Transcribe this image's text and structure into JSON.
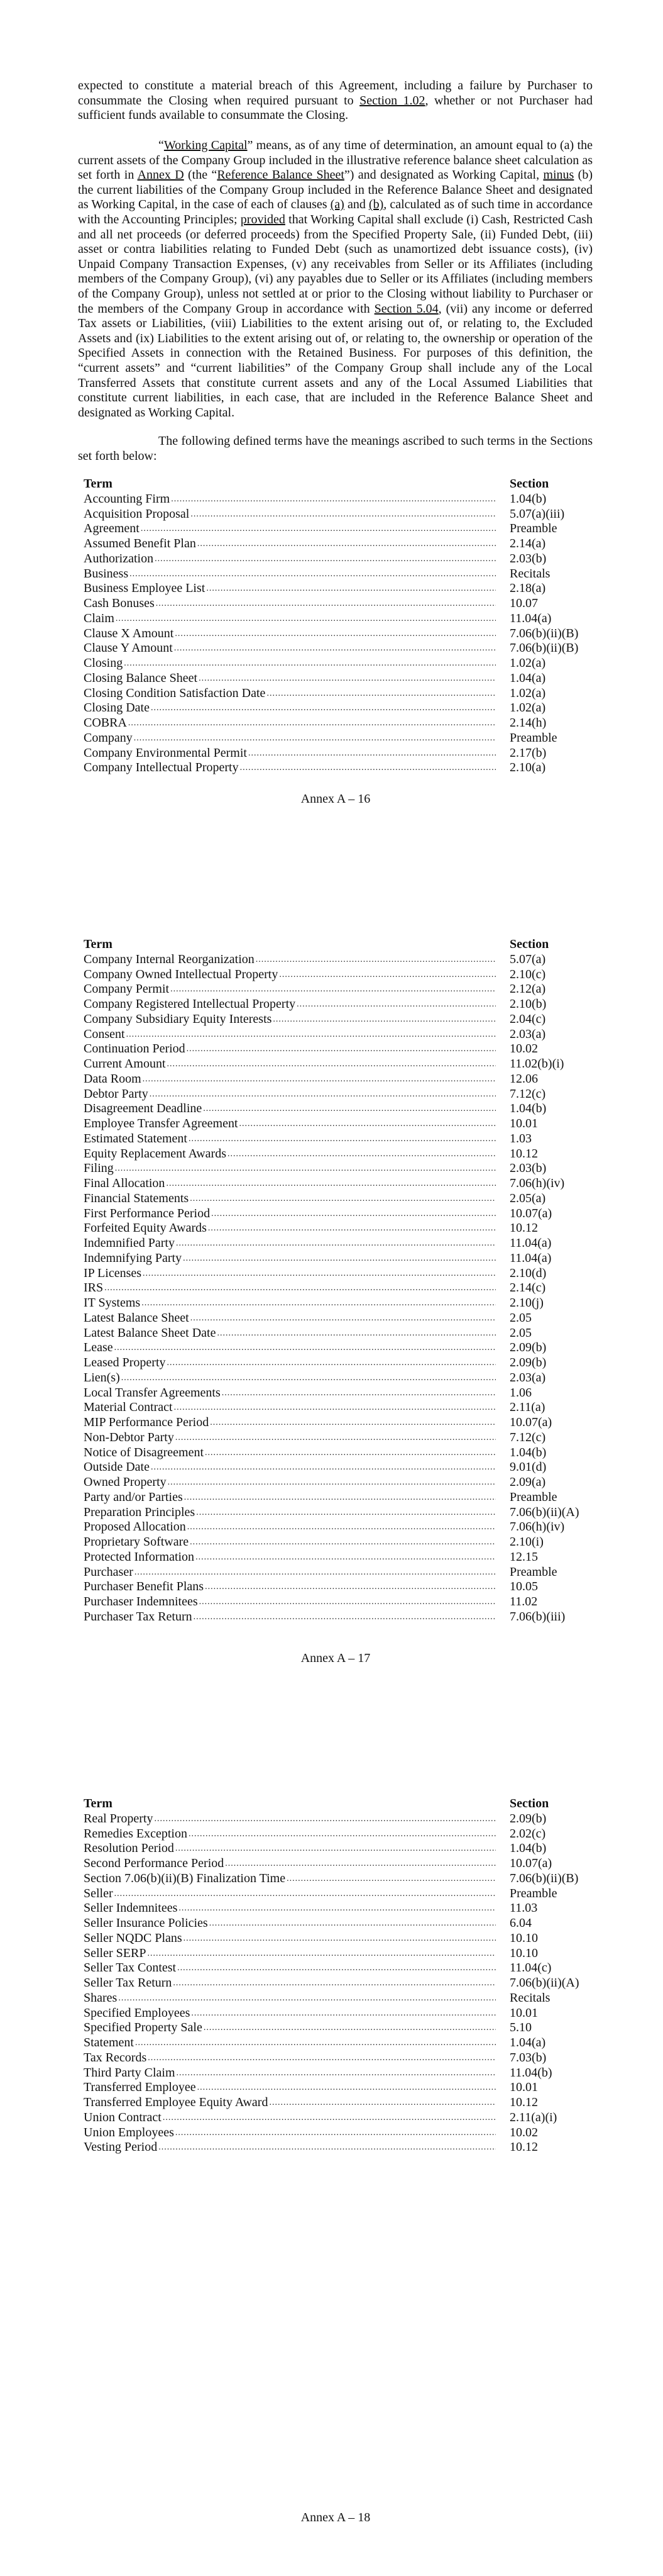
{
  "pages": [
    {
      "paragraphs": [
        {
          "indent": false,
          "segments": [
            {
              "t": "expected to constitute a material breach of this Agreement, including a failure by Purchaser to consummate the Closing when required pursuant to "
            },
            {
              "t": "Section 1.02",
              "u": true
            },
            {
              "t": ", whether or not Purchaser had sufficient funds available to consummate the Closing."
            }
          ]
        },
        {
          "indent": true,
          "segments": [
            {
              "t": "“"
            },
            {
              "t": "Working Capital",
              "u": true
            },
            {
              "t": "” means, as of any time of determination, an amount equal to (a) the current assets of the Company Group included in the illustrative reference balance sheet calculation as set forth in "
            },
            {
              "t": "Annex D",
              "u": true
            },
            {
              "t": " (the “"
            },
            {
              "t": "Reference Balance Sheet",
              "u": true
            },
            {
              "t": "”) and designated as Working Capital, "
            },
            {
              "t": "minus",
              "u": true
            },
            {
              "t": " (b) the current liabilities of the Company Group included in the Reference Balance Sheet and designated as Working Capital, in the case of each of clauses "
            },
            {
              "t": "(a)",
              "u": true
            },
            {
              "t": " and "
            },
            {
              "t": "(b)",
              "u": true
            },
            {
              "t": ", calculated as of such time in accordance with the Accounting Principles; "
            },
            {
              "t": "provided",
              "u": true
            },
            {
              "t": " that Working Capital shall exclude (i) Cash, Restricted Cash and all net proceeds (or deferred proceeds) from the Specified Property Sale, (ii) Funded Debt, (iii) asset or contra liabilities relating to Funded Debt (such as unamortized debt issuance costs), (iv) Unpaid Company Transaction Expenses, (v) any receivables from Seller or its Affiliates (including members of the Company Group), (vi) any payables due to Seller or its Affiliates (including members of the Company Group), unless not settled at or prior to the Closing without liability to Purchaser or the members of the Company Group in accordance with "
            },
            {
              "t": "Section 5.04",
              "u": true
            },
            {
              "t": ", (vii) any income or deferred Tax assets or Liabilities, (viii) Liabilities to the extent arising out of, or relating to, the Excluded Assets and (ix) Liabilities to the extent arising out of, or relating to, the ownership or operation of the Specified Assets in connection with the Retained Business.  For purposes of this definition, the “current assets” and “current liabilities” of the Company Group shall include any of the Local Transferred Assets that constitute current assets and any of the Local Assumed Liabilities that constitute current liabilities, in each case, that are included in the Reference Balance Sheet and designated as Working Capital."
            }
          ]
        },
        {
          "indent": true,
          "segments": [
            {
              "t": "The following defined terms have the meanings ascribed to such terms in the Sections set forth below:"
            }
          ]
        }
      ],
      "header": {
        "term": "Term",
        "section": "Section"
      },
      "rows": [
        [
          "Accounting Firm",
          "1.04(b)"
        ],
        [
          "Acquisition Proposal",
          "5.07(a)(iii)"
        ],
        [
          "Agreement",
          "Preamble"
        ],
        [
          "Assumed Benefit Plan",
          "2.14(a)"
        ],
        [
          "Authorization",
          "2.03(b)"
        ],
        [
          "Business",
          "Recitals"
        ],
        [
          "Business Employee List",
          "2.18(a)"
        ],
        [
          "Cash Bonuses",
          "10.07"
        ],
        [
          "Claim",
          "11.04(a)"
        ],
        [
          "Clause X Amount",
          "7.06(b)(ii)(B)"
        ],
        [
          "Clause Y Amount",
          "7.06(b)(ii)(B)"
        ],
        [
          "Closing",
          "1.02(a)"
        ],
        [
          "Closing Balance Sheet",
          "1.04(a)"
        ],
        [
          "Closing Condition Satisfaction Date",
          "1.02(a)"
        ],
        [
          "Closing Date",
          "1.02(a)"
        ],
        [
          "COBRA",
          "2.14(h)"
        ],
        [
          "Company",
          "Preamble"
        ],
        [
          "Company Environmental Permit",
          "2.17(b)"
        ],
        [
          "Company Intellectual Property",
          "2.10(a)"
        ]
      ],
      "footer": "Annex A – 16"
    },
    {
      "paragraphs": [],
      "header": {
        "term": "Term",
        "section": "Section"
      },
      "rows": [
        [
          "Company Internal Reorganization",
          "5.07(a)"
        ],
        [
          "Company Owned Intellectual Property",
          "2.10(c)"
        ],
        [
          "Company Permit",
          "2.12(a)"
        ],
        [
          "Company Registered Intellectual Property",
          "2.10(b)"
        ],
        [
          "Company Subsidiary Equity Interests",
          "2.04(c)"
        ],
        [
          "Consent",
          "2.03(a)"
        ],
        [
          "Continuation Period",
          "10.02"
        ],
        [
          "Current Amount",
          "11.02(b)(i)"
        ],
        [
          "Data Room",
          "12.06"
        ],
        [
          "Debtor Party",
          "7.12(c)"
        ],
        [
          "Disagreement Deadline",
          "1.04(b)"
        ],
        [
          "Employee Transfer Agreement",
          "10.01"
        ],
        [
          "Estimated Statement",
          "1.03"
        ],
        [
          "Equity Replacement Awards",
          "10.12"
        ],
        [
          "Filing",
          "2.03(b)"
        ],
        [
          "Final Allocation",
          "7.06(h)(iv)"
        ],
        [
          "Financial Statements",
          "2.05(a)"
        ],
        [
          "First Performance Period",
          "10.07(a)"
        ],
        [
          "Forfeited Equity Awards",
          "10.12"
        ],
        [
          "Indemnified Party",
          "11.04(a)"
        ],
        [
          "Indemnifying Party",
          "11.04(a)"
        ],
        [
          "IP Licenses",
          "2.10(d)"
        ],
        [
          "IRS",
          "2.14(c)"
        ],
        [
          "IT Systems",
          "2.10(j)"
        ],
        [
          "Latest Balance Sheet",
          "2.05"
        ],
        [
          "Latest Balance Sheet Date",
          "2.05"
        ],
        [
          "Lease",
          "2.09(b)"
        ],
        [
          "Leased Property",
          "2.09(b)"
        ],
        [
          "Lien(s)",
          "2.03(a)"
        ],
        [
          "Local Transfer Agreements",
          "1.06"
        ],
        [
          "Material Contract",
          "2.11(a)"
        ],
        [
          "MIP Performance Period",
          "10.07(a)"
        ],
        [
          "Non-Debtor Party",
          "7.12(c)"
        ],
        [
          "Notice of Disagreement",
          "1.04(b)"
        ],
        [
          "Outside Date",
          "9.01(d)"
        ],
        [
          "Owned Property",
          "2.09(a)"
        ],
        [
          "Party and/or Parties",
          "Preamble"
        ],
        [
          "Preparation Principles",
          "7.06(b)(ii)(A)"
        ],
        [
          "Proposed Allocation",
          "7.06(h)(iv)"
        ],
        [
          "Proprietary Software",
          "2.10(i)"
        ],
        [
          "Protected Information",
          "12.15"
        ],
        [
          "Purchaser",
          "Preamble"
        ],
        [
          "Purchaser Benefit Plans",
          "10.05"
        ],
        [
          "Purchaser Indemnitees",
          "11.02"
        ],
        [
          "Purchaser Tax Return",
          "7.06(b)(iii)"
        ]
      ],
      "footer": "Annex A – 17"
    },
    {
      "paragraphs": [],
      "header": {
        "term": "Term",
        "section": "Section"
      },
      "rows": [
        [
          "Real Property",
          "2.09(b)"
        ],
        [
          "Remedies Exception",
          "2.02(c)"
        ],
        [
          "Resolution Period",
          "1.04(b)"
        ],
        [
          "Second Performance Period",
          "10.07(a)"
        ],
        [
          "Section 7.06(b)(ii)(B) Finalization Time",
          "7.06(b)(ii)(B)"
        ],
        [
          "Seller",
          "Preamble"
        ],
        [
          "Seller Indemnitees",
          "11.03"
        ],
        [
          "Seller Insurance Policies",
          "6.04"
        ],
        [
          "Seller NQDC Plans",
          "10.10"
        ],
        [
          "Seller SERP",
          "10.10"
        ],
        [
          "Seller Tax Contest",
          "11.04(c)"
        ],
        [
          "Seller Tax Return",
          "7.06(b)(ii)(A)"
        ],
        [
          "Shares",
          "Recitals"
        ],
        [
          "Specified Employees",
          "10.01"
        ],
        [
          "Specified Property Sale",
          "5.10"
        ],
        [
          "Statement",
          "1.04(a)"
        ],
        [
          "Tax Records",
          "7.03(b)"
        ],
        [
          "Third Party Claim",
          "11.04(b)"
        ],
        [
          "Transferred Employee",
          "10.01"
        ],
        [
          "Transferred Employee Equity Award",
          "10.12"
        ],
        [
          "Union Contract",
          "2.11(a)(i)"
        ],
        [
          "Union Employees",
          "10.02"
        ],
        [
          "Vesting Period",
          "10.12"
        ]
      ],
      "footer": "Annex A – 18"
    }
  ]
}
